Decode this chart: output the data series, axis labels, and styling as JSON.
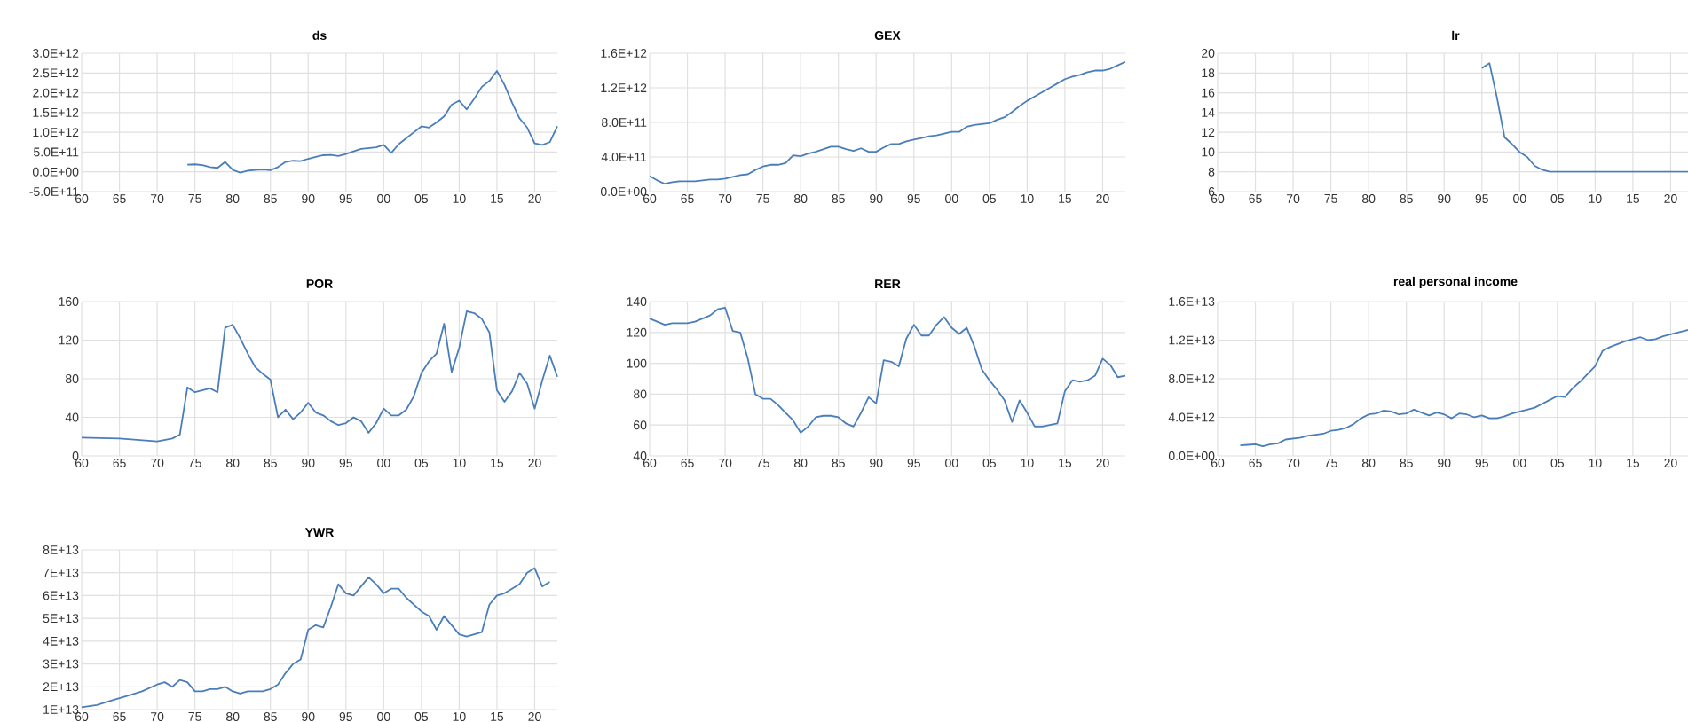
{
  "chart_data": [
    {
      "type": "line",
      "title": "ds",
      "color": "#4a7ebb",
      "grid": true,
      "xlim": [
        1960,
        2023
      ],
      "xticks": [
        {
          "value": 1960,
          "label": "60"
        },
        {
          "value": 1965,
          "label": "65"
        },
        {
          "value": 1970,
          "label": "70"
        },
        {
          "value": 1975,
          "label": "75"
        },
        {
          "value": 1980,
          "label": "80"
        },
        {
          "value": 1985,
          "label": "85"
        },
        {
          "value": 1990,
          "label": "90"
        },
        {
          "value": 1995,
          "label": "95"
        },
        {
          "value": 2000,
          "label": "00"
        },
        {
          "value": 2005,
          "label": "05"
        },
        {
          "value": 2010,
          "label": "10"
        },
        {
          "value": 2015,
          "label": "15"
        },
        {
          "value": 2020,
          "label": "20"
        }
      ],
      "ylim": [
        -500000000000.0,
        3000000000000.0
      ],
      "yticks": [
        {
          "value": -500000000000.0,
          "label": "-5.0E+11"
        },
        {
          "value": 0,
          "label": "0.0E+00"
        },
        {
          "value": 500000000000.0,
          "label": "5.0E+11"
        },
        {
          "value": 1000000000000.0,
          "label": "1.0E+12"
        },
        {
          "value": 1500000000000.0,
          "label": "1.5E+12"
        },
        {
          "value": 2000000000000.0,
          "label": "2.0E+12"
        },
        {
          "value": 2500000000000.0,
          "label": "2.5E+12"
        },
        {
          "value": 3000000000000.0,
          "label": "3.0E+12"
        }
      ],
      "x": [
        1974,
        1975,
        1976,
        1977,
        1978,
        1979,
        1980,
        1981,
        1982,
        1983,
        1984,
        1985,
        1986,
        1987,
        1988,
        1989,
        1990,
        1991,
        1992,
        1993,
        1994,
        1995,
        1996,
        1997,
        1998,
        1999,
        2000,
        2001,
        2002,
        2003,
        2004,
        2005,
        2006,
        2007,
        2008,
        2009,
        2010,
        2011,
        2012,
        2013,
        2014,
        2015,
        2016,
        2017,
        2018,
        2019,
        2020,
        2021,
        2022,
        2023
      ],
      "values": [
        180000000000.0,
        190000000000.0,
        170000000000.0,
        120000000000.0,
        100000000000.0,
        250000000000.0,
        50000000000.0,
        -20000000000.0,
        30000000000.0,
        50000000000.0,
        60000000000.0,
        40000000000.0,
        120000000000.0,
        250000000000.0,
        280000000000.0,
        270000000000.0,
        330000000000.0,
        380000000000.0,
        420000000000.0,
        430000000000.0,
        400000000000.0,
        450000000000.0,
        520000000000.0,
        580000000000.0,
        600000000000.0,
        620000000000.0,
        680000000000.0,
        480000000000.0,
        700000000000.0,
        850000000000.0,
        1000000000000.0,
        1150000000000.0,
        1120000000000.0,
        1250000000000.0,
        1400000000000.0,
        1700000000000.0,
        1800000000000.0,
        1580000000000.0,
        1850000000000.0,
        2150000000000.0,
        2300000000000.0,
        2550000000000.0,
        2200000000000.0,
        1750000000000.0,
        1350000000000.0,
        1120000000000.0,
        720000000000.0,
        680000000000.0,
        750000000000.0,
        1150000000000.0
      ]
    },
    {
      "type": "line",
      "title": "GEX",
      "color": "#4a7ebb",
      "grid": true,
      "xlim": [
        1960,
        2023
      ],
      "xticks": [
        {
          "value": 1960,
          "label": "60"
        },
        {
          "value": 1965,
          "label": "65"
        },
        {
          "value": 1970,
          "label": "70"
        },
        {
          "value": 1975,
          "label": "75"
        },
        {
          "value": 1980,
          "label": "80"
        },
        {
          "value": 1985,
          "label": "85"
        },
        {
          "value": 1990,
          "label": "90"
        },
        {
          "value": 1995,
          "label": "95"
        },
        {
          "value": 2000,
          "label": "00"
        },
        {
          "value": 2005,
          "label": "05"
        },
        {
          "value": 2010,
          "label": "10"
        },
        {
          "value": 2015,
          "label": "15"
        },
        {
          "value": 2020,
          "label": "20"
        }
      ],
      "ylim": [
        0,
        1600000000000.0
      ],
      "yticks": [
        {
          "value": 0,
          "label": "0.0E+00"
        },
        {
          "value": 400000000000.0,
          "label": "4.0E+11"
        },
        {
          "value": 800000000000.0,
          "label": "8.0E+11"
        },
        {
          "value": 1200000000000.0,
          "label": "1.2E+12"
        },
        {
          "value": 1600000000000.0,
          "label": "1.6E+12"
        }
      ],
      "x": [
        1960,
        1961,
        1962,
        1963,
        1964,
        1965,
        1966,
        1967,
        1968,
        1969,
        1970,
        1971,
        1972,
        1973,
        1974,
        1975,
        1976,
        1977,
        1978,
        1979,
        1980,
        1981,
        1982,
        1983,
        1984,
        1985,
        1986,
        1987,
        1988,
        1989,
        1990,
        1991,
        1992,
        1993,
        1994,
        1995,
        1996,
        1997,
        1998,
        1999,
        2000,
        2001,
        2002,
        2003,
        2004,
        2005,
        2006,
        2007,
        2008,
        2009,
        2010,
        2011,
        2012,
        2013,
        2014,
        2015,
        2016,
        2017,
        2018,
        2019,
        2020,
        2021,
        2022,
        2023
      ],
      "values": [
        180000000000.0,
        130000000000.0,
        90000000000.0,
        110000000000.0,
        120000000000.0,
        120000000000.0,
        120000000000.0,
        130000000000.0,
        140000000000.0,
        140000000000.0,
        150000000000.0,
        170000000000.0,
        190000000000.0,
        200000000000.0,
        250000000000.0,
        290000000000.0,
        310000000000.0,
        310000000000.0,
        330000000000.0,
        420000000000.0,
        410000000000.0,
        440000000000.0,
        460000000000.0,
        490000000000.0,
        520000000000.0,
        520000000000.0,
        490000000000.0,
        470000000000.0,
        500000000000.0,
        460000000000.0,
        460000000000.0,
        510000000000.0,
        550000000000.0,
        550000000000.0,
        580000000000.0,
        600000000000.0,
        620000000000.0,
        640000000000.0,
        650000000000.0,
        670000000000.0,
        690000000000.0,
        690000000000.0,
        750000000000.0,
        770000000000.0,
        780000000000.0,
        790000000000.0,
        830000000000.0,
        860000000000.0,
        920000000000.0,
        990000000000.0,
        1050000000000.0,
        1100000000000.0,
        1150000000000.0,
        1200000000000.0,
        1250000000000.0,
        1300000000000.0,
        1330000000000.0,
        1350000000000.0,
        1380000000000.0,
        1400000000000.0,
        1400000000000.0,
        1420000000000.0,
        1460000000000.0,
        1500000000000.0
      ]
    },
    {
      "type": "line",
      "title": "lr",
      "color": "#4a7ebb",
      "grid": true,
      "xlim": [
        1960,
        2023
      ],
      "xticks": [
        {
          "value": 1960,
          "label": "60"
        },
        {
          "value": 1965,
          "label": "65"
        },
        {
          "value": 1970,
          "label": "70"
        },
        {
          "value": 1975,
          "label": "75"
        },
        {
          "value": 1980,
          "label": "80"
        },
        {
          "value": 1985,
          "label": "85"
        },
        {
          "value": 1990,
          "label": "90"
        },
        {
          "value": 1995,
          "label": "95"
        },
        {
          "value": 2000,
          "label": "00"
        },
        {
          "value": 2005,
          "label": "05"
        },
        {
          "value": 2010,
          "label": "10"
        },
        {
          "value": 2015,
          "label": "15"
        },
        {
          "value": 2020,
          "label": "20"
        }
      ],
      "ylim": [
        6,
        20
      ],
      "yticks": [
        6,
        8,
        10,
        12,
        14,
        16,
        18,
        20
      ],
      "x": [
        1995,
        1996,
        1997,
        1998,
        1999,
        2000,
        2001,
        2002,
        2003,
        2004,
        2005,
        2010,
        2015,
        2020,
        2023
      ],
      "values": [
        18.5,
        19,
        15.5,
        11.5,
        10.8,
        10,
        9.5,
        8.6,
        8.2,
        8,
        8,
        8,
        8,
        8,
        8
      ]
    },
    {
      "type": "line",
      "title": "POR",
      "color": "#4a7ebb",
      "grid": true,
      "xlim": [
        1960,
        2023
      ],
      "xticks": [
        {
          "value": 1960,
          "label": "60"
        },
        {
          "value": 1965,
          "label": "65"
        },
        {
          "value": 1970,
          "label": "70"
        },
        {
          "value": 1975,
          "label": "75"
        },
        {
          "value": 1980,
          "label": "80"
        },
        {
          "value": 1985,
          "label": "85"
        },
        {
          "value": 1990,
          "label": "90"
        },
        {
          "value": 1995,
          "label": "95"
        },
        {
          "value": 2000,
          "label": "00"
        },
        {
          "value": 2005,
          "label": "05"
        },
        {
          "value": 2010,
          "label": "10"
        },
        {
          "value": 2015,
          "label": "15"
        },
        {
          "value": 2020,
          "label": "20"
        }
      ],
      "ylim": [
        0,
        160
      ],
      "yticks": [
        0,
        40,
        80,
        120,
        160
      ],
      "x": [
        1960,
        1965,
        1970,
        1972,
        1973,
        1974,
        1975,
        1976,
        1977,
        1978,
        1979,
        1980,
        1981,
        1982,
        1983,
        1984,
        1985,
        1986,
        1987,
        1988,
        1989,
        1990,
        1991,
        1992,
        1993,
        1994,
        1995,
        1996,
        1997,
        1998,
        1999,
        2000,
        2001,
        2002,
        2003,
        2004,
        2005,
        2006,
        2007,
        2008,
        2009,
        2010,
        2011,
        2012,
        2013,
        2014,
        2015,
        2016,
        2017,
        2018,
        2019,
        2020,
        2021,
        2022,
        2023
      ],
      "values": [
        19,
        18,
        15,
        18,
        22,
        71,
        66,
        68,
        70,
        66,
        133,
        136,
        122,
        106,
        92,
        85,
        79,
        40,
        48,
        38,
        45,
        55,
        45,
        42,
        36,
        32,
        34,
        40,
        36,
        24,
        34,
        49,
        42,
        42,
        48,
        62,
        86,
        98,
        106,
        137,
        87,
        112,
        150,
        148,
        142,
        128,
        68,
        56,
        67,
        86,
        75,
        49,
        78,
        104,
        82
      ]
    },
    {
      "type": "line",
      "title": "RER",
      "color": "#4a7ebb",
      "grid": true,
      "xlim": [
        1960,
        2023
      ],
      "xticks": [
        {
          "value": 1960,
          "label": "60"
        },
        {
          "value": 1965,
          "label": "65"
        },
        {
          "value": 1970,
          "label": "70"
        },
        {
          "value": 1975,
          "label": "75"
        },
        {
          "value": 1980,
          "label": "80"
        },
        {
          "value": 1985,
          "label": "85"
        },
        {
          "value": 1990,
          "label": "90"
        },
        {
          "value": 1995,
          "label": "95"
        },
        {
          "value": 2000,
          "label": "00"
        },
        {
          "value": 2005,
          "label": "05"
        },
        {
          "value": 2010,
          "label": "10"
        },
        {
          "value": 2015,
          "label": "15"
        },
        {
          "value": 2020,
          "label": "20"
        }
      ],
      "ylim": [
        40,
        140
      ],
      "yticks": [
        40,
        60,
        80,
        100,
        120,
        140
      ],
      "x": [
        1960,
        1961,
        1962,
        1963,
        1964,
        1965,
        1966,
        1967,
        1968,
        1969,
        1970,
        1971,
        1972,
        1973,
        1974,
        1975,
        1976,
        1977,
        1978,
        1979,
        1980,
        1981,
        1982,
        1983,
        1984,
        1985,
        1986,
        1987,
        1988,
        1989,
        1990,
        1991,
        1992,
        1993,
        1994,
        1995,
        1996,
        1997,
        1998,
        1999,
        2000,
        2001,
        2002,
        2003,
        2004,
        2005,
        2006,
        2007,
        2008,
        2009,
        2010,
        2011,
        2012,
        2013,
        2014,
        2015,
        2016,
        2017,
        2018,
        2019,
        2020,
        2021,
        2022,
        2023
      ],
      "values": [
        129,
        127,
        125,
        126,
        126,
        126,
        127,
        129,
        131,
        135,
        136,
        121,
        120,
        103,
        80,
        77,
        77,
        73,
        68,
        63,
        55,
        59,
        65,
        66,
        66,
        65,
        61,
        59,
        68,
        78,
        74,
        102,
        101,
        98,
        116,
        125,
        118,
        118,
        125,
        130,
        123,
        119,
        123,
        111,
        96,
        89,
        83,
        76,
        62,
        76,
        68,
        59,
        59,
        60,
        61,
        82,
        89,
        88,
        89,
        92,
        103,
        99,
        91,
        92
      ]
    },
    {
      "type": "line",
      "title": "real personal income",
      "color": "#4a7ebb",
      "grid": true,
      "xlim": [
        1960,
        2023
      ],
      "xticks": [
        {
          "value": 1960,
          "label": "60"
        },
        {
          "value": 1965,
          "label": "65"
        },
        {
          "value": 1970,
          "label": "70"
        },
        {
          "value": 1975,
          "label": "75"
        },
        {
          "value": 1980,
          "label": "80"
        },
        {
          "value": 1985,
          "label": "85"
        },
        {
          "value": 1990,
          "label": "90"
        },
        {
          "value": 1995,
          "label": "95"
        },
        {
          "value": 2000,
          "label": "00"
        },
        {
          "value": 2005,
          "label": "05"
        },
        {
          "value": 2010,
          "label": "10"
        },
        {
          "value": 2015,
          "label": "15"
        },
        {
          "value": 2020,
          "label": "20"
        }
      ],
      "ylim": [
        0,
        16000000000000.0
      ],
      "yticks": [
        {
          "value": 0,
          "label": "0.0E+00"
        },
        {
          "value": 4000000000000.0,
          "label": "4.0E+12"
        },
        {
          "value": 8000000000000.0,
          "label": "8.0E+12"
        },
        {
          "value": 12000000000000.0,
          "label": "1.2E+13"
        },
        {
          "value": 16000000000000.0,
          "label": "1.6E+13"
        }
      ],
      "x": [
        1963,
        1964,
        1965,
        1966,
        1967,
        1968,
        1969,
        1970,
        1971,
        1972,
        1973,
        1974,
        1975,
        1976,
        1977,
        1978,
        1979,
        1980,
        1981,
        1982,
        1983,
        1984,
        1985,
        1986,
        1987,
        1988,
        1989,
        1990,
        1991,
        1992,
        1993,
        1994,
        1995,
        1996,
        1997,
        1998,
        1999,
        2000,
        2001,
        2002,
        2003,
        2004,
        2005,
        2006,
        2007,
        2008,
        2009,
        2010,
        2011,
        2012,
        2013,
        2014,
        2015,
        2016,
        2017,
        2018,
        2019,
        2020,
        2021,
        2022,
        2023
      ],
      "values": [
        1100000000000.0,
        1150000000000.0,
        1200000000000.0,
        1000000000000.0,
        1200000000000.0,
        1300000000000.0,
        1700000000000.0,
        1800000000000.0,
        1900000000000.0,
        2100000000000.0,
        2200000000000.0,
        2300000000000.0,
        2600000000000.0,
        2700000000000.0,
        2900000000000.0,
        3300000000000.0,
        3900000000000.0,
        4300000000000.0,
        4400000000000.0,
        4700000000000.0,
        4600000000000.0,
        4300000000000.0,
        4400000000000.0,
        4800000000000.0,
        4500000000000.0,
        4200000000000.0,
        4500000000000.0,
        4300000000000.0,
        3900000000000.0,
        4400000000000.0,
        4300000000000.0,
        4000000000000.0,
        4200000000000.0,
        3900000000000.0,
        3900000000000.0,
        4100000000000.0,
        4400000000000.0,
        4600000000000.0,
        4800000000000.0,
        5000000000000.0,
        5400000000000.0,
        5800000000000.0,
        6200000000000.0,
        6100000000000.0,
        7000000000000.0,
        7700000000000.0,
        8500000000000.0,
        9300000000000.0,
        10900000000000.0,
        11300000000000.0,
        11600000000000.0,
        11900000000000.0,
        12100000000000.0,
        12300000000000.0,
        12000000000000.0,
        12100000000000.0,
        12400000000000.0,
        12600000000000.0,
        12800000000000.0,
        13000000000000.0,
        13200000000000.0
      ]
    },
    {
      "type": "line",
      "title": "YWR",
      "color": "#4a7ebb",
      "grid": true,
      "xlim": [
        1960,
        2023
      ],
      "xticks": [
        {
          "value": 1960,
          "label": "60"
        },
        {
          "value": 1965,
          "label": "65"
        },
        {
          "value": 1970,
          "label": "70"
        },
        {
          "value": 1975,
          "label": "75"
        },
        {
          "value": 1980,
          "label": "80"
        },
        {
          "value": 1985,
          "label": "85"
        },
        {
          "value": 1990,
          "label": "90"
        },
        {
          "value": 1995,
          "label": "95"
        },
        {
          "value": 2000,
          "label": "00"
        },
        {
          "value": 2005,
          "label": "05"
        },
        {
          "value": 2010,
          "label": "10"
        },
        {
          "value": 2015,
          "label": "15"
        },
        {
          "value": 2020,
          "label": "20"
        }
      ],
      "ylim": [
        10000000000000.0,
        80000000000000.0
      ],
      "yticks": [
        {
          "value": 10000000000000.0,
          "label": "1E+13"
        },
        {
          "value": 20000000000000.0,
          "label": "2E+13"
        },
        {
          "value": 30000000000000.0,
          "label": "3E+13"
        },
        {
          "value": 40000000000000.0,
          "label": "4E+13"
        },
        {
          "value": 50000000000000.0,
          "label": "5E+13"
        },
        {
          "value": 60000000000000.0,
          "label": "6E+13"
        },
        {
          "value": 70000000000000.0,
          "label": "7E+13"
        },
        {
          "value": 80000000000000.0,
          "label": "8E+13"
        }
      ],
      "x": [
        1960,
        1962,
        1964,
        1966,
        1968,
        1970,
        1971,
        1972,
        1973,
        1974,
        1975,
        1976,
        1977,
        1978,
        1979,
        1980,
        1981,
        1982,
        1983,
        1984,
        1985,
        1986,
        1987,
        1988,
        1989,
        1990,
        1991,
        1992,
        1993,
        1994,
        1995,
        1996,
        1997,
        1998,
        1999,
        2000,
        2001,
        2002,
        2003,
        2004,
        2005,
        2006,
        2007,
        2008,
        2009,
        2010,
        2011,
        2012,
        2013,
        2014,
        2015,
        2016,
        2017,
        2018,
        2019,
        2020,
        2021,
        2022
      ],
      "values": [
        11000000000000.0,
        12000000000000.0,
        14000000000000.0,
        16000000000000.0,
        18000000000000.0,
        21000000000000.0,
        22000000000000.0,
        20000000000000.0,
        23000000000000.0,
        22000000000000.0,
        18000000000000.0,
        18000000000000.0,
        19000000000000.0,
        19000000000000.0,
        20000000000000.0,
        18000000000000.0,
        17000000000000.0,
        18000000000000.0,
        18000000000000.0,
        18000000000000.0,
        19000000000000.0,
        21000000000000.0,
        26000000000000.0,
        30000000000000.0,
        32000000000000.0,
        45000000000000.0,
        47000000000000.0,
        46000000000000.0,
        55000000000000.0,
        65000000000000.0,
        61000000000000.0,
        60000000000000.0,
        64000000000000.0,
        68000000000000.0,
        65000000000000.0,
        61000000000000.0,
        63000000000000.0,
        63000000000000.0,
        59000000000000.0,
        56000000000000.0,
        53000000000000.0,
        51000000000000.0,
        45000000000000.0,
        51000000000000.0,
        47000000000000.0,
        43000000000000.0,
        42000000000000.0,
        43000000000000.0,
        44000000000000.0,
        56000000000000.0,
        60000000000000.0,
        61000000000000.0,
        63000000000000.0,
        65000000000000.0,
        70000000000000.0,
        72000000000000.0,
        64000000000000.0,
        66000000000000.0
      ]
    }
  ]
}
